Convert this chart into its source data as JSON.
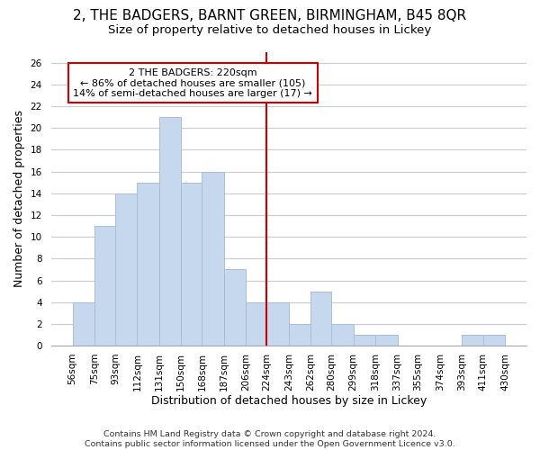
{
  "title": "2, THE BADGERS, BARNT GREEN, BIRMINGHAM, B45 8QR",
  "subtitle": "Size of property relative to detached houses in Lickey",
  "xlabel": "Distribution of detached houses by size in Lickey",
  "ylabel": "Number of detached properties",
  "bin_edges": [
    56,
    75,
    93,
    112,
    131,
    150,
    168,
    187,
    206,
    224,
    243,
    262,
    280,
    299,
    318,
    337,
    355,
    374,
    393,
    411,
    430
  ],
  "counts": [
    4,
    11,
    14,
    15,
    21,
    15,
    16,
    7,
    4,
    4,
    2,
    5,
    2,
    1,
    1,
    0,
    0,
    0,
    1,
    1
  ],
  "bar_color": "#c5d8ed",
  "bar_edgecolor": "#aabfd6",
  "reference_line_x": 224,
  "reference_line_color": "#cc0000",
  "annotation_title": "2 THE BADGERS: 220sqm",
  "annotation_line1": "← 86% of detached houses are smaller (105)",
  "annotation_line2": "14% of semi-detached houses are larger (17) →",
  "annotation_box_color": "#ffffff",
  "annotation_box_edgecolor": "#cc0000",
  "ylim": [
    0,
    27
  ],
  "yticks": [
    0,
    2,
    4,
    6,
    8,
    10,
    12,
    14,
    16,
    18,
    20,
    22,
    24,
    26
  ],
  "tick_labels": [
    "56sqm",
    "75sqm",
    "93sqm",
    "112sqm",
    "131sqm",
    "150sqm",
    "168sqm",
    "187sqm",
    "206sqm",
    "224sqm",
    "243sqm",
    "262sqm",
    "280sqm",
    "299sqm",
    "318sqm",
    "337sqm",
    "355sqm",
    "374sqm",
    "393sqm",
    "411sqm",
    "430sqm"
  ],
  "footer_line1": "Contains HM Land Registry data © Crown copyright and database right 2024.",
  "footer_line2": "Contains public sector information licensed under the Open Government Licence v3.0.",
  "bg_color": "#ffffff",
  "grid_color": "#cccccc",
  "title_fontsize": 11,
  "subtitle_fontsize": 9.5,
  "axis_label_fontsize": 9,
  "tick_fontsize": 7.5,
  "footer_fontsize": 6.8,
  "annotation_fontsize": 8
}
